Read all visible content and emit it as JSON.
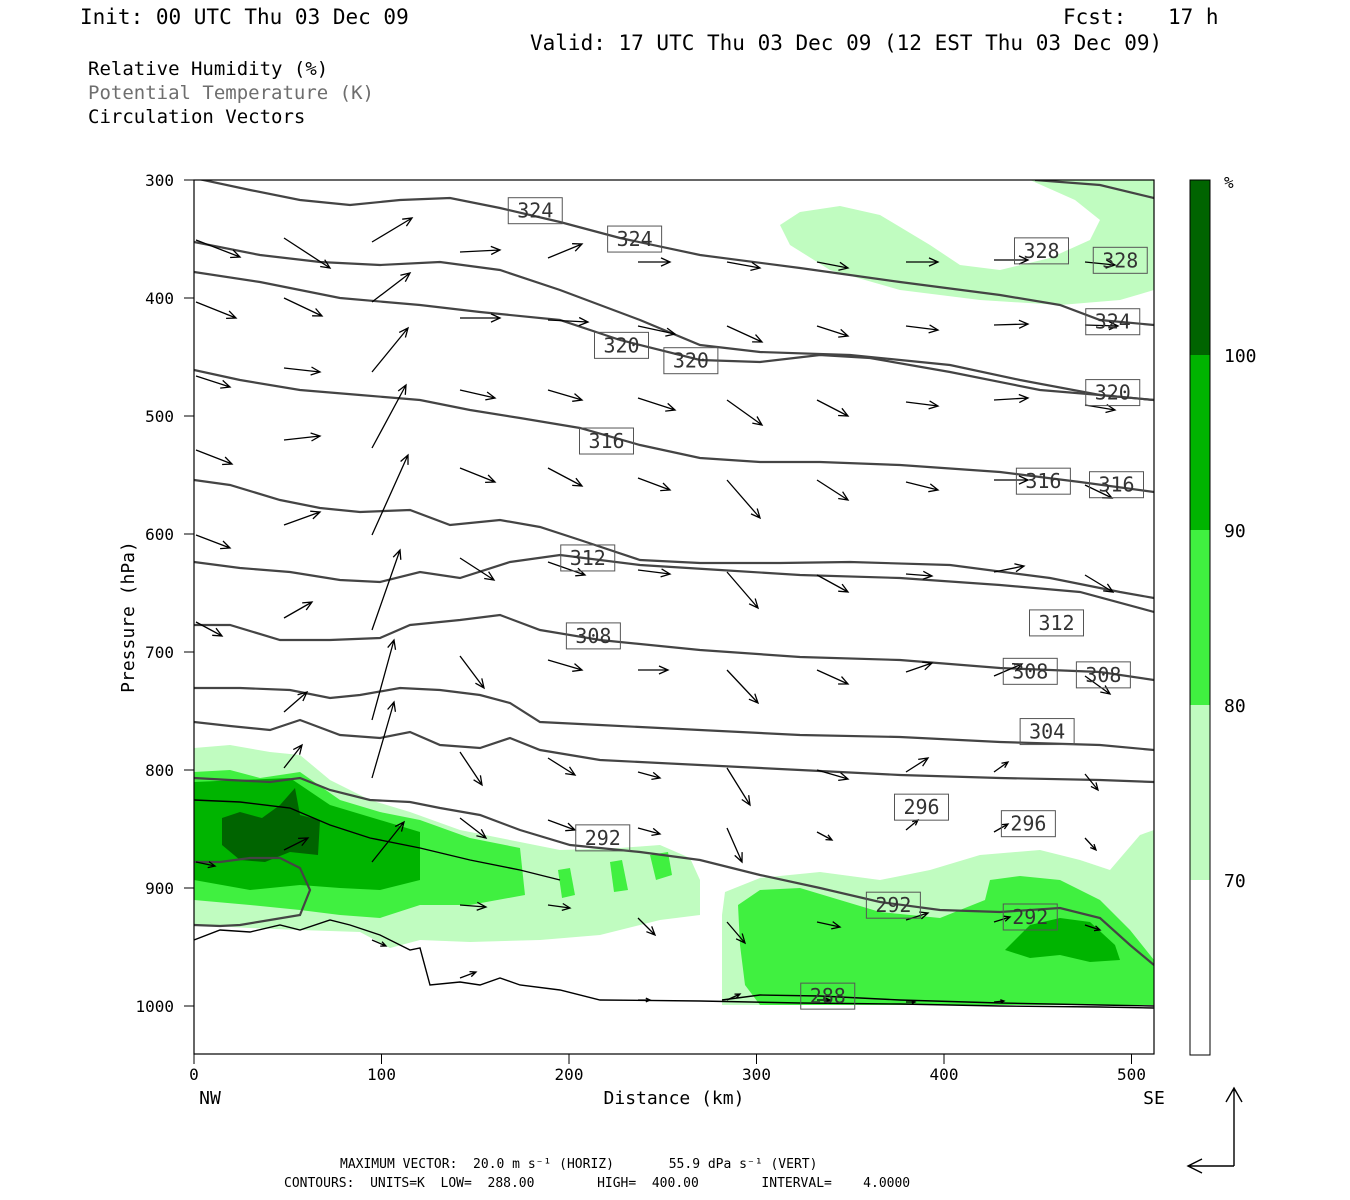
{
  "header": {
    "init": "Init: 00 UTC Thu 03 Dec 09",
    "fcst_label": "Fcst:",
    "fcst_value": "17 h",
    "valid": "Valid: 17 UTC Thu 03 Dec 09 (12 EST Thu 03 Dec 09)"
  },
  "legend": {
    "rh": "Relative Humidity (%)",
    "theta": "Potential Temperature (K)",
    "vectors": "Circulation Vectors"
  },
  "footer": {
    "line1": "MAXIMUM VECTOR:  20.0 m s⁻¹ (HORIZ)       55.9 dPa s⁻¹ (VERT)",
    "line2": "CONTOURS:  UNITS=K  LOW=  288.00        HIGH=  400.00        INTERVAL=    4.0000"
  },
  "chart_data": {
    "type": "cross-section",
    "xlabel": "Distance (km)",
    "ylabel": "Pressure (hPa)",
    "x_range": [
      0,
      512
    ],
    "y_range": [
      300,
      1040
    ],
    "x_ticks": [
      0,
      100,
      200,
      300,
      400,
      500
    ],
    "y_ticks": [
      300,
      400,
      500,
      600,
      700,
      800,
      900,
      1000
    ],
    "x_end_labels": {
      "left": "NW",
      "right": "SE"
    },
    "colorbar": {
      "unit": "%",
      "levels": [
        70,
        80,
        90,
        100
      ],
      "colors": [
        "#ffffff",
        "#c0fcc0",
        "#40f040",
        "#00b400",
        "#006400"
      ]
    },
    "theta_levels": [
      288,
      292,
      296,
      300,
      304,
      308,
      312,
      316,
      320,
      324,
      328
    ],
    "contour_labels": [
      {
        "value": "324",
        "x": 182,
        "p": 326
      },
      {
        "value": "324",
        "x": 235,
        "p": 350
      },
      {
        "value": "328",
        "x": 452,
        "p": 360
      },
      {
        "value": "328",
        "x": 494,
        "p": 368
      },
      {
        "value": "324",
        "x": 490,
        "p": 420
      },
      {
        "value": "320",
        "x": 228,
        "p": 440
      },
      {
        "value": "320",
        "x": 265,
        "p": 453
      },
      {
        "value": "320",
        "x": 490,
        "p": 480
      },
      {
        "value": "316",
        "x": 220,
        "p": 521
      },
      {
        "value": "316",
        "x": 453,
        "p": 555
      },
      {
        "value": "316",
        "x": 492,
        "p": 558
      },
      {
        "value": "312",
        "x": 210,
        "p": 620
      },
      {
        "value": "312",
        "x": 460,
        "p": 675
      },
      {
        "value": "308",
        "x": 213,
        "p": 686
      },
      {
        "value": "308",
        "x": 446,
        "p": 716
      },
      {
        "value": "308",
        "x": 485,
        "p": 719
      },
      {
        "value": "304",
        "x": 455,
        "p": 767
      },
      {
        "value": "296",
        "x": 388,
        "p": 831
      },
      {
        "value": "296",
        "x": 445,
        "p": 845
      },
      {
        "value": "292",
        "x": 218,
        "p": 857
      },
      {
        "value": "292",
        "x": 373,
        "p": 914
      },
      {
        "value": "292",
        "x": 446,
        "p": 924
      },
      {
        "value": "288",
        "x": 338,
        "p": 991
      }
    ],
    "colorbar_ticks": [
      "100",
      "90",
      "80",
      "70"
    ],
    "colorbar_unit_label": "%"
  }
}
